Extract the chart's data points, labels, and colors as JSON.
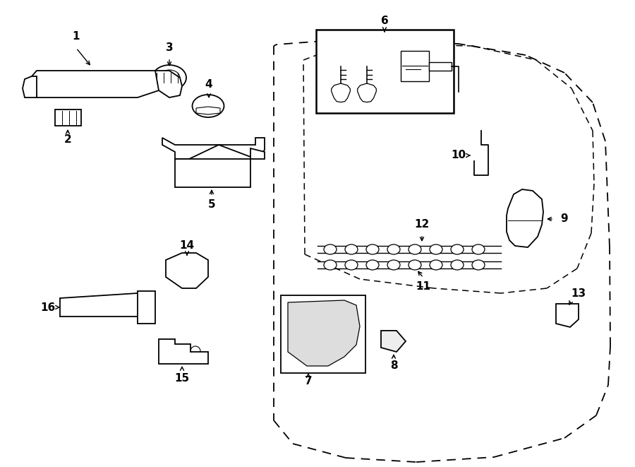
{
  "bg_color": "#ffffff",
  "line_color": "#000000",
  "figsize": [
    9.0,
    6.61
  ],
  "dpi": 100,
  "xlim": [
    0,
    900
  ],
  "ylim": [
    0,
    661
  ]
}
